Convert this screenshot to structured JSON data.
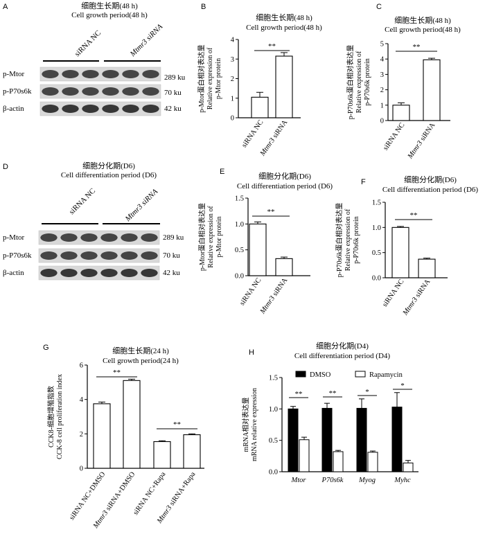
{
  "panels": {
    "A": {
      "label": "A",
      "title_cn": "细胞生长期(48 h)",
      "title_en": "Cell growth period(48 h)",
      "groups": [
        "siRNA NC",
        "Mtmr3 siRNA"
      ],
      "rows": [
        {
          "name": "p-Mtor",
          "size": "289 ku"
        },
        {
          "name": "p-P70s6k",
          "size": "70 ku"
        },
        {
          "name": "β-actin",
          "size": "42 ku"
        }
      ]
    },
    "D": {
      "label": "D",
      "title_cn": "细胞分化期(D6)",
      "title_en": "Cell differentiation period (D6)",
      "groups": [
        "siRNA NC",
        "Mtmr3 siRNA"
      ],
      "rows": [
        {
          "name": "p-Mtor",
          "size": "289 ku"
        },
        {
          "name": "p-P70s6k",
          "size": "70 ku"
        },
        {
          "name": "β-actin",
          "size": "42 ku"
        }
      ]
    }
  },
  "chart_data": [
    {
      "id": "B",
      "label": "B",
      "type": "bar",
      "title_cn": "细胞生长期(48 h)",
      "title_en": "Cell growth period(48 h)",
      "ylabel": [
        "p-Mtor蛋白相对表达量",
        "Relative expression of",
        "p-Mtor protein"
      ],
      "categories": [
        "siRNA NC",
        "Mtmr3 siRNA"
      ],
      "values": [
        1.05,
        3.15
      ],
      "errors": [
        0.25,
        0.18
      ],
      "ylim": [
        0,
        4
      ],
      "yticks": [
        "0",
        "1",
        "2",
        "3",
        "4"
      ],
      "significance": [
        {
          "pair": [
            0,
            1
          ],
          "label": "**"
        }
      ]
    },
    {
      "id": "C",
      "label": "C",
      "type": "bar",
      "title_cn": "细胞生长期(48 h)",
      "title_en": "Cell growth period(48 h)",
      "ylabel": [
        "p-P70s6k蛋白相对表达量",
        "Relative expression of",
        "p-P70s6k protein"
      ],
      "categories": [
        "siRNA NC",
        "Mtmr3 siRNA"
      ],
      "values": [
        1.0,
        3.95
      ],
      "errors": [
        0.15,
        0.1
      ],
      "ylim": [
        0,
        5
      ],
      "yticks": [
        "0",
        "1",
        "2",
        "3",
        "4",
        "5"
      ],
      "significance": [
        {
          "pair": [
            0,
            1
          ],
          "label": "**"
        }
      ]
    },
    {
      "id": "E",
      "label": "E",
      "type": "bar",
      "title_cn": "细胞分化期(D6)",
      "title_en": "Cell differentiation period (D6)",
      "ylabel": [
        "p-Mtor蛋白相对表达量",
        "Relative expression of",
        "p-Mtor protein"
      ],
      "categories": [
        "siRNA NC",
        "Mtmr3 siRNA"
      ],
      "values": [
        1.0,
        0.33
      ],
      "errors": [
        0.04,
        0.03
      ],
      "ylim": [
        0,
        1.5
      ],
      "yticks": [
        "0.0",
        "0.5",
        "1.0",
        "1.5"
      ],
      "significance": [
        {
          "pair": [
            0,
            1
          ],
          "label": "**"
        }
      ]
    },
    {
      "id": "F",
      "label": "F",
      "type": "bar",
      "title_cn": "细胞分化期(D6)",
      "title_en": "Cell differentiation period (D6)",
      "ylabel": [
        "p-P70s6k蛋白相对表达量",
        "Relative expression of",
        "p-P70s6k protein"
      ],
      "categories": [
        "siRNA NC",
        "Mtmr3 siRNA"
      ],
      "values": [
        1.0,
        0.37
      ],
      "errors": [
        0.02,
        0.02
      ],
      "ylim": [
        0,
        1.5
      ],
      "yticks": [
        "0.0",
        "0.5",
        "1.0",
        "1.5"
      ],
      "significance": [
        {
          "pair": [
            0,
            1
          ],
          "label": "**"
        }
      ]
    },
    {
      "id": "G",
      "label": "G",
      "type": "bar",
      "title_cn": "细胞生长期(24 h)",
      "title_en": "Cell growth period(24 h)",
      "ylabel": [
        "CCK8-细胞增殖指数",
        "CCK-8 cell proliferation index"
      ],
      "categories": [
        "siRNA NC+DMSO",
        "Mtmr3 siRNA+DMSO",
        "siRNA NC+Rapa",
        "Mtmr3 siRNA+Rapa"
      ],
      "values": [
        3.75,
        5.1,
        1.55,
        1.95
      ],
      "errors": [
        0.1,
        0.08,
        0.05,
        0.05
      ],
      "ylim": [
        0,
        6
      ],
      "yticks": [
        "0",
        "2",
        "4",
        "6"
      ],
      "significance": [
        {
          "pair": [
            0,
            1
          ],
          "label": "**"
        },
        {
          "pair": [
            2,
            3
          ],
          "label": "**"
        }
      ]
    },
    {
      "id": "H",
      "label": "H",
      "type": "bar",
      "title_cn": "细胞分化期(D4)",
      "title_en": "Cell differentiation period (D4)",
      "ylabel": [
        "mRNA相对表达量",
        "mRNA relative expression"
      ],
      "categories": [
        "Mtor",
        "P70s6k",
        "Myog",
        "Myhc"
      ],
      "series": [
        {
          "name": "DMSO",
          "values": [
            1.0,
            1.01,
            1.01,
            1.03
          ],
          "errors": [
            0.04,
            0.08,
            0.15,
            0.23
          ],
          "color": "#000000"
        },
        {
          "name": "Rapamycin",
          "values": [
            0.51,
            0.32,
            0.31,
            0.14
          ],
          "errors": [
            0.04,
            0.02,
            0.02,
            0.04
          ],
          "color": "#ffffff"
        }
      ],
      "ylim": [
        0,
        1.5
      ],
      "yticks": [
        "0.0",
        "0.5",
        "1.0",
        "1.5"
      ],
      "significance": [
        "**",
        "**",
        "*",
        "*"
      ],
      "legend": "top"
    }
  ]
}
